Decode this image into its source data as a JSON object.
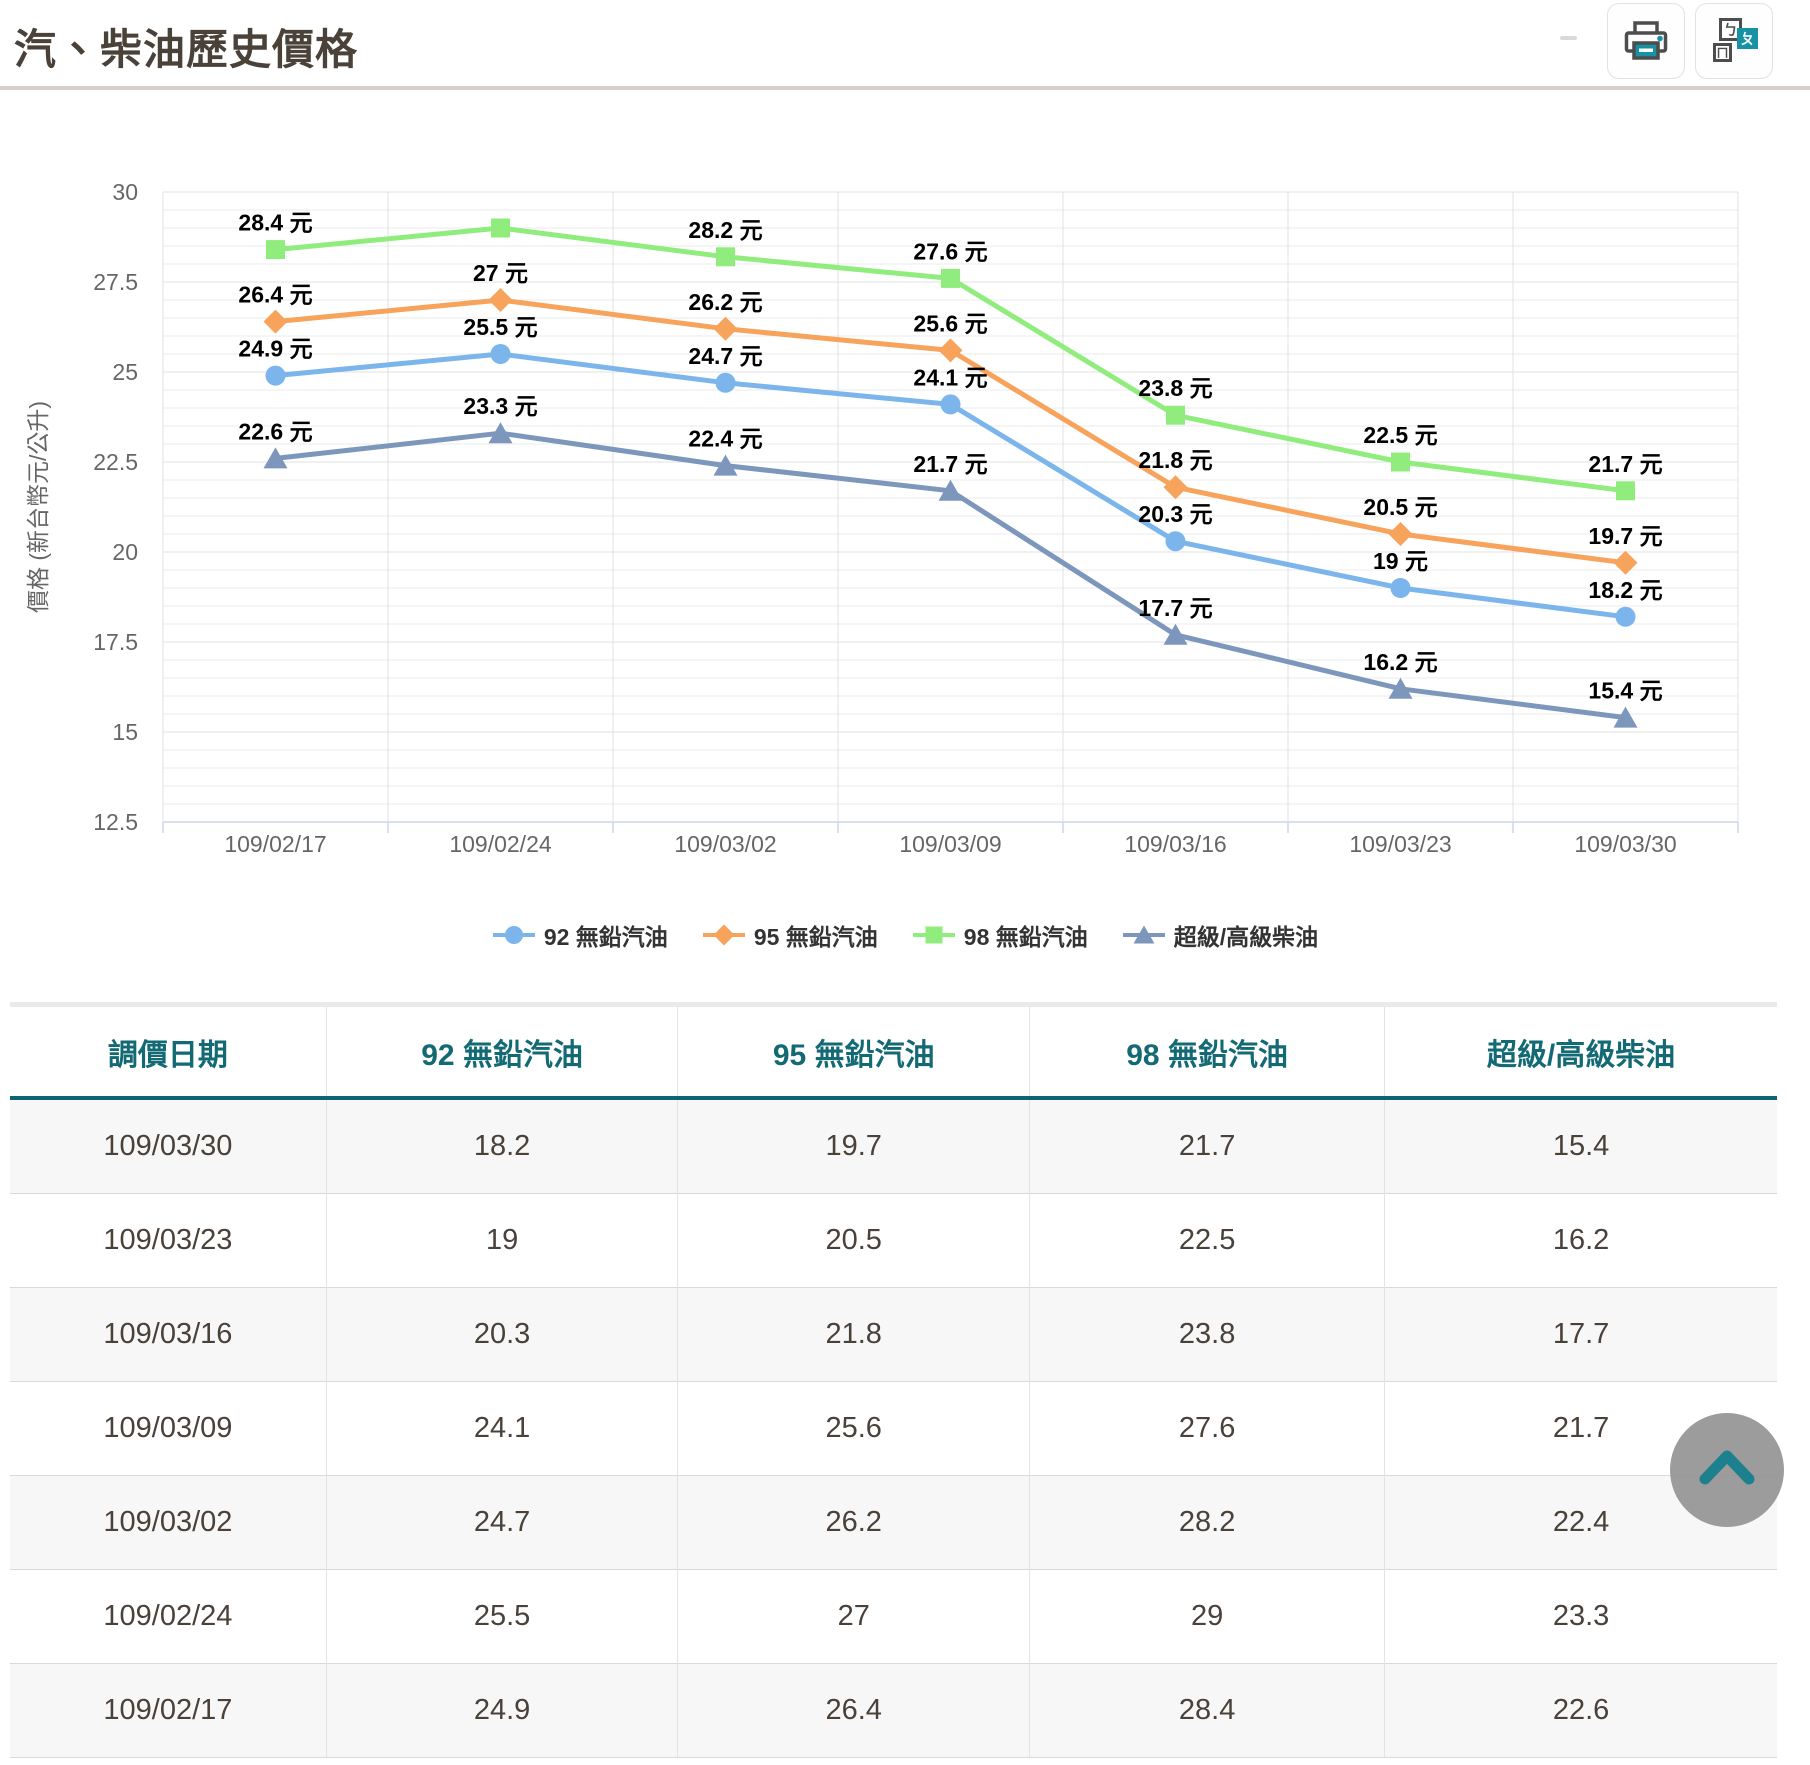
{
  "header": {
    "title": "汽、柴油歷史價格",
    "buttons": [
      {
        "icon": "printer-icon"
      },
      {
        "icon": "phonetic-icon",
        "glyphs": [
          "ㄅ",
          "ㄆ",
          "ㄇ"
        ]
      }
    ]
  },
  "colors": {
    "accent_teal": "#1792a5",
    "title_text": "#4a4139",
    "axis_text": "#666666",
    "grid_minor": "#ebebeb",
    "grid_major": "#e0e0e0",
    "axis_line": "#ccd6eb",
    "data_label": "#000000",
    "table_header_text": "#136a74",
    "table_header_border": "#0d6570",
    "table_cell_text": "#4a4139",
    "row_stripe": "#f7f7f7",
    "scroll_chevron": "#1d808f"
  },
  "chart_data": {
    "type": "line",
    "title": "",
    "xlabel": "",
    "ylabel": "價格 (新台幣元/公升)",
    "ylim": [
      12.5,
      30
    ],
    "yticks": [
      30,
      27.5,
      25,
      22.5,
      20,
      17.5,
      15,
      12.5
    ],
    "minor_grid_step": 0.5,
    "grid": true,
    "legend_position": "bottom",
    "label_suffix": " 元",
    "categories": [
      "109/02/17",
      "109/02/24",
      "109/03/02",
      "109/03/09",
      "109/03/16",
      "109/03/23",
      "109/03/30"
    ],
    "series": [
      {
        "name": "92 無鉛汽油",
        "color": "#7cb5ec",
        "marker": "circle",
        "values": [
          24.9,
          25.5,
          24.7,
          24.1,
          20.3,
          19,
          18.2
        ]
      },
      {
        "name": "95 無鉛汽油",
        "color": "#f7a35c",
        "marker": "diamond",
        "values": [
          26.4,
          27,
          26.2,
          25.6,
          21.8,
          20.5,
          19.7
        ]
      },
      {
        "name": "98 無鉛汽油",
        "color": "#90ed7d",
        "marker": "square",
        "values": [
          28.4,
          29,
          28.2,
          27.6,
          23.8,
          22.5,
          21.7
        ],
        "hidden_labels": [
          1
        ]
      },
      {
        "name": "超級/高級柴油",
        "color": "#7d96bc",
        "marker": "triangle-up",
        "values": [
          22.6,
          23.3,
          22.4,
          21.7,
          17.7,
          16.2,
          15.4
        ]
      }
    ]
  },
  "table": {
    "headers": [
      "調價日期",
      "92 無鉛汽油",
      "95 無鉛汽油",
      "98 無鉛汽油",
      "超級/高級柴油"
    ],
    "col_widths_pct": [
      17.9,
      19.9,
      19.9,
      20.1,
      22.2
    ],
    "rows": [
      [
        "109/03/30",
        "18.2",
        "19.7",
        "21.7",
        "15.4"
      ],
      [
        "109/03/23",
        "19",
        "20.5",
        "22.5",
        "16.2"
      ],
      [
        "109/03/16",
        "20.3",
        "21.8",
        "23.8",
        "17.7"
      ],
      [
        "109/03/09",
        "24.1",
        "25.6",
        "27.6",
        "21.7"
      ],
      [
        "109/03/02",
        "24.7",
        "26.2",
        "28.2",
        "22.4"
      ],
      [
        "109/02/24",
        "25.5",
        "27",
        "29",
        "23.3"
      ],
      [
        "109/02/17",
        "24.9",
        "26.4",
        "28.4",
        "22.6"
      ]
    ]
  }
}
